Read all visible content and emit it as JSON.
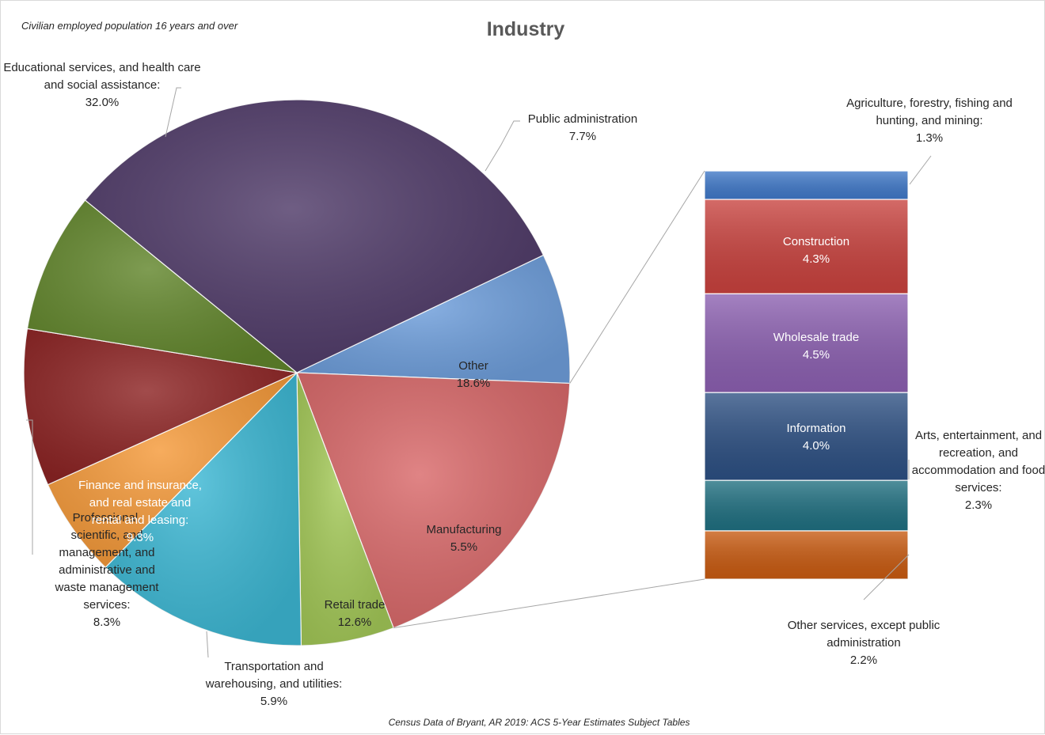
{
  "chart_data": {
    "type": "bar-of-pie",
    "title": "Industry",
    "subtitle": "Civilian employed population 16 years and over",
    "source": "Census Data of Bryant, AR 2019: ACS 5-Year Estimates Subject Tables",
    "pie": [
      {
        "category": "Public administration",
        "label": "Public administration",
        "value": 7.7,
        "color": "#6f9fdc"
      },
      {
        "category": "Other",
        "label": "Other",
        "value": 18.6,
        "color": "#d9696a"
      },
      {
        "category": "Manufacturing",
        "label": "Manufacturing",
        "value": 5.5,
        "color": "#a4c958"
      },
      {
        "category": "Retail trade",
        "label": "Retail trade",
        "value": 12.6,
        "color": "#3db8d4"
      },
      {
        "category": "Transportation and warehousing, and utilities",
        "label": "Transportation and warehousing, and utilities:",
        "value": 5.9,
        "color": "#f59a3a"
      },
      {
        "category": "Finance and insurance, and real estate and rental and leasing",
        "label": "Finance and insurance, and real estate and rental and leasing:",
        "value": 9.3,
        "color": "#8d2424"
      },
      {
        "category": "Professional, scientific, and management, and administrative and waste management services",
        "label": "Professional, scientific, and management, and administrative and waste management services:",
        "value": 8.3,
        "color": "#62862c"
      },
      {
        "category": "Educational services, and health care and social assistance",
        "label": "Educational services, and health care and social assistance:",
        "value": 32.0,
        "color": "#4f3a68"
      }
    ],
    "bar": [
      {
        "category": "Agriculture, forestry, fishing and hunting, and mining",
        "label": "Agriculture, forestry, fishing and hunting, and mining:",
        "value": 1.3,
        "color": "#3f78c8"
      },
      {
        "category": "Construction",
        "label": "Construction",
        "value": 4.3,
        "color": "#c8413d"
      },
      {
        "category": "Wholesale trade",
        "label": "Wholesale trade",
        "value": 4.5,
        "color": "#8b5fb0"
      },
      {
        "category": "Information",
        "label": "Information",
        "value": 4.0,
        "color": "#2c4f82"
      },
      {
        "category": "Arts, entertainment, and recreation, and accommodation and food services",
        "label": "Arts, entertainment, and recreation, and accommodation and food services:",
        "value": 2.3,
        "color": "#1f6f80"
      },
      {
        "category": "Other services, except public administration",
        "label": "Other services, except public administration",
        "value": 2.2,
        "color": "#c85a10"
      }
    ],
    "value_labels": {
      "pie": [
        "7.7%",
        "18.6%",
        "5.5%",
        "12.6%",
        "5.9%",
        "9.3%",
        "8.3%",
        "32.0%"
      ],
      "bar": [
        "1.3%",
        "4.3%",
        "4.5%",
        "4.0%",
        "2.3%",
        "2.2%"
      ]
    }
  }
}
